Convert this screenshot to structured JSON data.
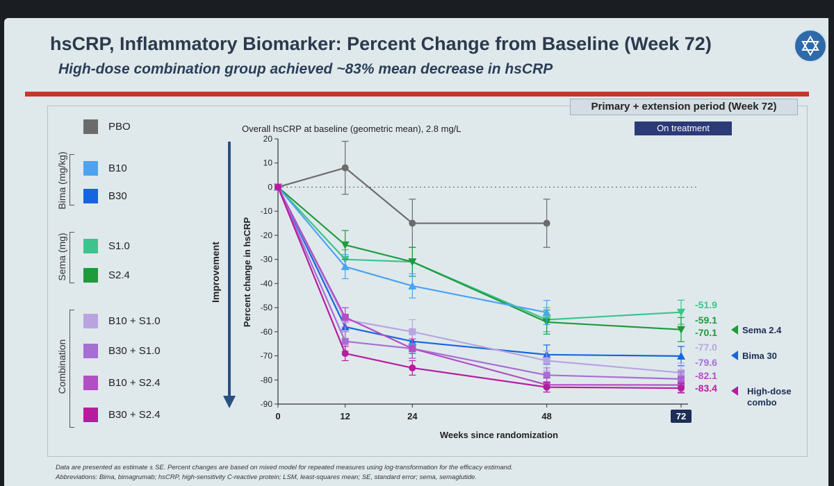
{
  "title": "hsCRP, Inflammatory Biomarker: Percent Change from Baseline (Week 72)",
  "subtitle": "High-dose combination group achieved ~83% mean decrease in hsCRP",
  "period_label": "Primary + extension period (Week 72)",
  "on_treatment_label": "On treatment",
  "footnotes": [
    "Data are presented as estimate ± SE. Percent changes are based on mixed model for repeated measures using log-transformation for the efficacy estimand.",
    "Abbreviations: Bima, bimagrumab; hsCRP, high-sensitivity C-reactive protein; LSM, least-squares mean; SE, standard error; sema, semaglutide."
  ],
  "legend": {
    "groups": [
      "Bima (mg/kg)",
      "Sema (mg)",
      "Combination"
    ],
    "items": [
      {
        "label": "PBO",
        "color": "#6b6b6b"
      },
      {
        "label": "B10",
        "color": "#4da3ef"
      },
      {
        "label": "B30",
        "color": "#1565e0"
      },
      {
        "label": "S1.0",
        "color": "#3cc48c"
      },
      {
        "label": "S2.4",
        "color": "#1f9a3c"
      },
      {
        "label": "B10 + S1.0",
        "color": "#b9a4e0"
      },
      {
        "label": "B30 + S1.0",
        "color": "#a66fd4"
      },
      {
        "label": "B10 + S2.4",
        "color": "#b34ec4"
      },
      {
        "label": "B30 + S2.4",
        "color": "#b81c9e"
      }
    ]
  },
  "chart_data": {
    "type": "line",
    "annotation": "Overall hsCRP at baseline (geometric mean), 2.8 mg/L",
    "xlabel": "Weeks since randomization",
    "ylabel": "Percent change in hsCRP",
    "improvement_label": "Improvement",
    "x_ticks": [
      "0",
      "12",
      "24",
      "48",
      "72"
    ],
    "x": [
      0,
      12,
      24,
      48,
      72
    ],
    "xlim": [
      0,
      72
    ],
    "ylim": [
      -90,
      20
    ],
    "y_ticks": [
      20,
      10,
      0,
      -10,
      -20,
      -30,
      -40,
      -50,
      -60,
      -70,
      -80,
      -90
    ],
    "series": [
      {
        "name": "PBO",
        "color": "#6b6b6b",
        "marker": "circle",
        "values": [
          0,
          8,
          -15,
          -15,
          null
        ],
        "se": [
          0,
          11,
          10,
          10,
          null
        ]
      },
      {
        "name": "S1.0",
        "color": "#3cc48c",
        "marker": "triangle-down",
        "values": [
          0,
          -30,
          -31,
          -55,
          -51.9
        ],
        "se": [
          0,
          4,
          6,
          5,
          5
        ]
      },
      {
        "name": "S2.4",
        "color": "#1f9a3c",
        "marker": "triangle-down",
        "values": [
          0,
          -24,
          -31,
          -56,
          -59.1
        ],
        "se": [
          0,
          6,
          6,
          5,
          5
        ]
      },
      {
        "name": "B10",
        "color": "#4da3ef",
        "marker": "triangle",
        "values": [
          0,
          -33,
          -41,
          -52,
          null
        ],
        "se": [
          0,
          5,
          5,
          5,
          null
        ]
      },
      {
        "name": "B30",
        "color": "#1565e0",
        "marker": "triangle",
        "values": [
          0,
          -58,
          -64,
          -69.5,
          -70.1
        ],
        "se": [
          0,
          5,
          5,
          4,
          4
        ]
      },
      {
        "name": "B10 + S1.0",
        "color": "#b9a4e0",
        "marker": "square",
        "values": [
          0,
          -55,
          -60,
          -72,
          -77.0
        ],
        "se": [
          0,
          5,
          5,
          4,
          4
        ]
      },
      {
        "name": "B30 + S1.0",
        "color": "#a66fd4",
        "marker": "square",
        "values": [
          0,
          -64,
          -67,
          -78,
          -79.6
        ],
        "se": [
          0,
          4,
          4,
          3,
          3
        ]
      },
      {
        "name": "B10 + S2.4",
        "color": "#b34ec4",
        "marker": "square",
        "values": [
          0,
          -54,
          -67,
          -82,
          -82.1
        ],
        "se": [
          0,
          4,
          4,
          3,
          3
        ]
      },
      {
        "name": "B30 + S2.4",
        "color": "#b81c9e",
        "marker": "circle",
        "values": [
          0,
          -69,
          -75,
          -83,
          -83.4
        ],
        "se": [
          0,
          3,
          3,
          2,
          2
        ]
      }
    ],
    "end_labels": [
      {
        "text": "-51.9",
        "color": "#3cc48c"
      },
      {
        "text": "-59.1",
        "color": "#1f9a3c"
      },
      {
        "text": "-70.1",
        "color": "#1f9a3c"
      },
      {
        "text": "-77.0",
        "color": "#b9a4e0"
      },
      {
        "text": "-79.6",
        "color": "#a66fd4"
      },
      {
        "text": "-82.1",
        "color": "#b34ec4"
      },
      {
        "text": "-83.4",
        "color": "#b81c9e"
      }
    ],
    "callouts": [
      {
        "text": "Sema 2.4",
        "color": "#1f9a3c"
      },
      {
        "text": "Bima 30",
        "color": "#1565e0"
      },
      {
        "text": "High-dose combo",
        "color": "#b81c9e"
      }
    ]
  }
}
